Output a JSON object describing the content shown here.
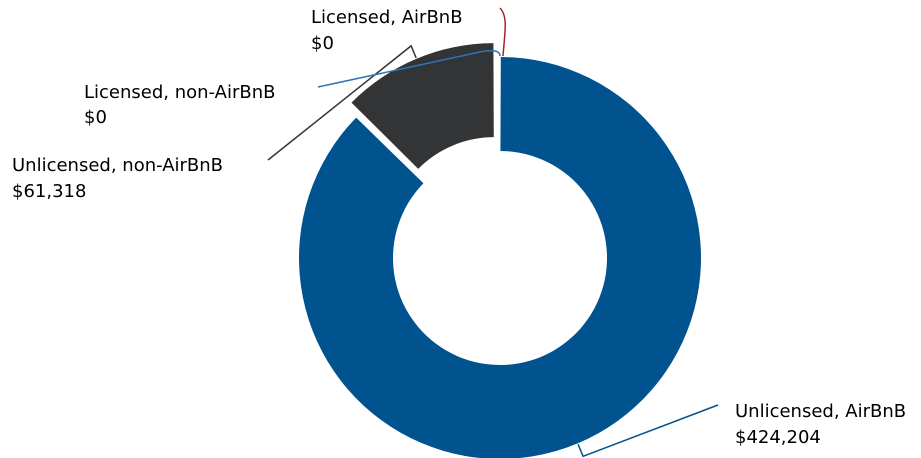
{
  "chart_data": {
    "type": "donut",
    "categories": [
      "Unlicensed, AirBnB",
      "Unlicensed, non-AirBnB",
      "Licensed, non-AirBnB",
      "Licensed, AirBnB"
    ],
    "values": [
      424204,
      61318,
      0,
      0
    ],
    "value_labels": [
      "$424,204",
      "$61,318",
      "$0",
      "$0"
    ],
    "colors": [
      "#00538f",
      "#333435",
      "#2e75b6",
      "#a0282c"
    ]
  }
}
